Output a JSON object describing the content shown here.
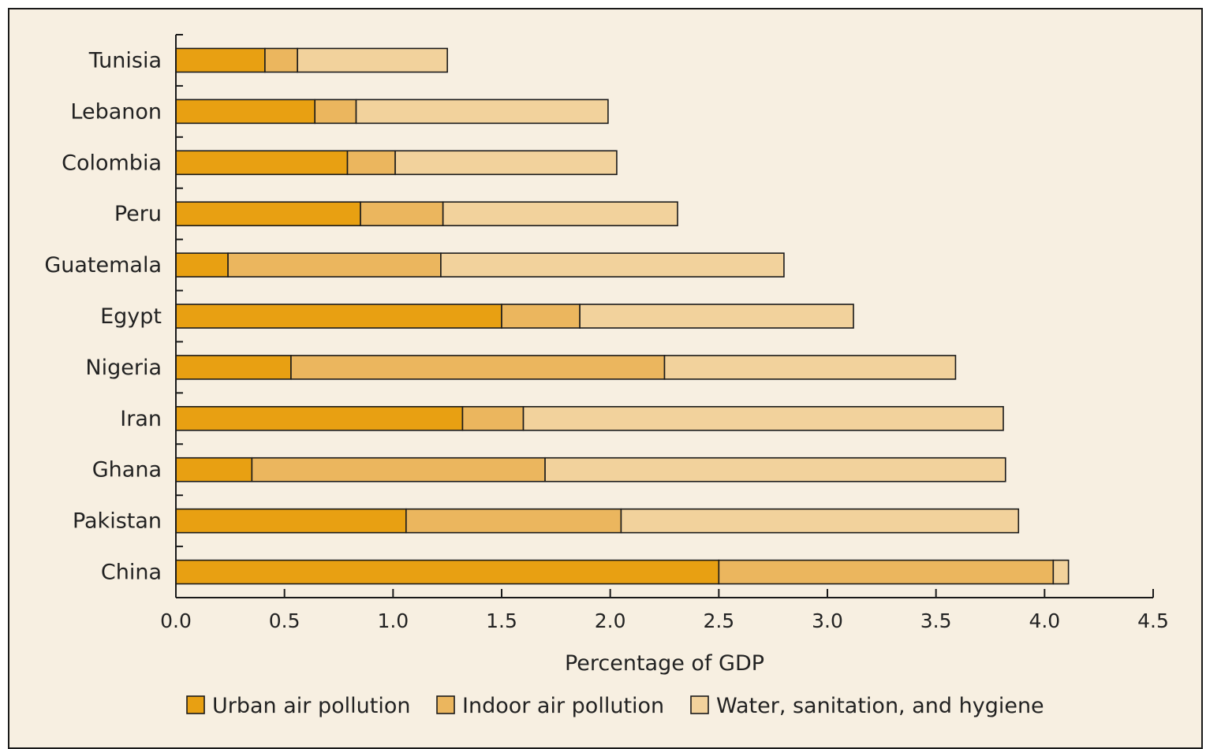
{
  "chart_data": {
    "type": "bar",
    "orientation": "horizontal",
    "stacked": true,
    "categories": [
      "Tunisia",
      "Lebanon",
      "Colombia",
      "Peru",
      "Guatemala",
      "Egypt",
      "Nigeria",
      "Iran",
      "Ghana",
      "Pakistan",
      "China"
    ],
    "series": [
      {
        "name": "Urban air pollution",
        "color": "#e8a012",
        "values": [
          0.41,
          0.64,
          0.79,
          0.85,
          0.24,
          1.5,
          0.53,
          1.32,
          0.35,
          1.06,
          2.5
        ]
      },
      {
        "name": "Indoor air pollution",
        "color": "#ebb65e",
        "values": [
          0.15,
          0.19,
          0.22,
          0.38,
          0.98,
          0.36,
          1.72,
          0.28,
          1.35,
          0.99,
          1.54
        ]
      },
      {
        "name": "Water, sanitation, and hygiene",
        "color": "#f2d29c",
        "values": [
          0.69,
          1.16,
          1.02,
          1.08,
          1.58,
          1.26,
          1.34,
          2.21,
          2.12,
          1.83,
          0.07
        ]
      }
    ],
    "xlabel": "Percentage of GDP",
    "xlim": [
      0,
      4.5
    ],
    "xticks": [
      "0.0",
      "0.5",
      "1.0",
      "1.5",
      "2.0",
      "2.5",
      "3.0",
      "3.5",
      "4.0",
      "4.5"
    ],
    "grid": false,
    "legend_position": "bottom"
  }
}
